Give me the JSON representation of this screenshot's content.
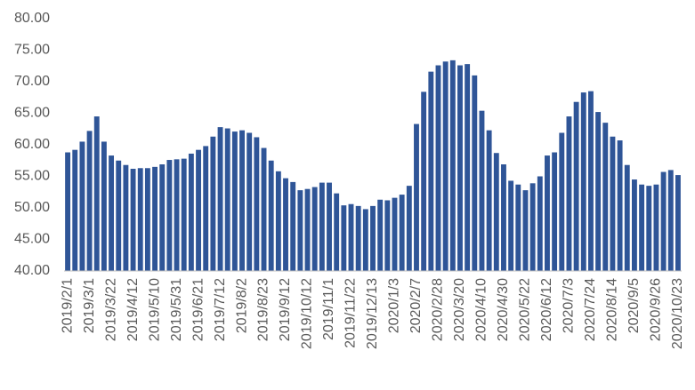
{
  "chart_data": {
    "type": "bar",
    "categories": [
      "2019/2/1",
      null,
      null,
      "2019/3/1",
      null,
      null,
      "2019/3/22",
      null,
      null,
      "2019/4/12",
      null,
      null,
      "2019/5/10",
      null,
      null,
      "2019/5/31",
      null,
      null,
      "2019/6/21",
      null,
      null,
      "2019/7/12",
      null,
      null,
      "2019/8/2",
      null,
      null,
      "2019/8/23",
      null,
      null,
      "2019/9/12",
      null,
      null,
      "2019/10/12",
      null,
      null,
      "2019/11/1",
      null,
      null,
      "2019/11/22",
      null,
      null,
      "2019/12/13",
      null,
      null,
      "2020/1/3",
      null,
      null,
      "2020/2/7",
      null,
      null,
      "2020/2/28",
      null,
      null,
      "2020/3/20",
      null,
      null,
      "2020/4/10",
      null,
      null,
      "2020/4/30",
      null,
      null,
      "2020/5/22",
      null,
      null,
      "2020/6/12",
      null,
      null,
      "2020/7/3",
      null,
      null,
      "2020/7/24",
      null,
      null,
      "2020/8/14",
      null,
      null,
      "2020/9/5",
      null,
      null,
      "2020/9/26",
      null,
      null,
      "2020/10/23"
    ],
    "values": [
      58.8,
      59.2,
      60.5,
      62.2,
      64.5,
      60.5,
      58.3,
      57.5,
      56.8,
      56.2,
      56.3,
      56.3,
      56.5,
      56.9,
      57.6,
      57.7,
      57.8,
      58.6,
      59.2,
      59.8,
      61.3,
      62.8,
      62.6,
      62.1,
      62.3,
      61.9,
      61.2,
      59.5,
      57.5,
      55.8,
      54.7,
      54.1,
      52.8,
      53.0,
      53.3,
      54.0,
      54.0,
      52.3,
      50.4,
      50.6,
      50.3,
      49.8,
      50.3,
      51.3,
      51.2,
      51.6,
      52.1,
      53.5,
      63.3,
      68.4,
      71.6,
      72.6,
      73.2,
      73.4,
      72.6,
      72.8,
      71.0,
      65.4,
      62.3,
      58.7,
      56.9,
      54.3,
      53.7,
      52.8,
      53.9,
      55.0,
      58.3,
      58.8,
      61.9,
      64.5,
      66.8,
      68.3,
      68.5,
      65.2,
      63.5,
      61.3,
      60.7,
      56.8,
      54.5,
      53.7,
      53.5,
      53.7,
      55.7,
      56.0,
      55.2
    ],
    "color": "#2f5597",
    "ylim": [
      40,
      80
    ],
    "yticks": [
      {
        "value": 40,
        "label": "40.00"
      },
      {
        "value": 45,
        "label": "45.00"
      },
      {
        "value": 50,
        "label": "50.00"
      },
      {
        "value": 55,
        "label": "55.00"
      },
      {
        "value": 60,
        "label": "60.00"
      },
      {
        "value": 65,
        "label": "65.00"
      },
      {
        "value": 70,
        "label": "70.00"
      },
      {
        "value": 75,
        "label": "75.00"
      },
      {
        "value": 80,
        "label": "80.00"
      }
    ],
    "grid": false
  }
}
